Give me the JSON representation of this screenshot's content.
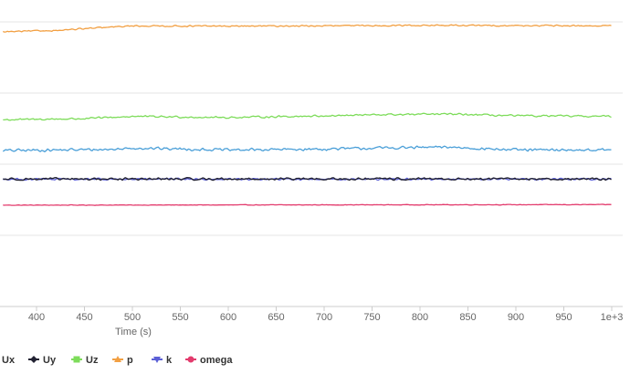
{
  "chart_data": {
    "type": "line",
    "title": "",
    "xlabel": "Time (s)",
    "ylabel": "",
    "xlim": [
      365,
      1000
    ],
    "x_ticks": [
      400,
      450,
      500,
      550,
      600,
      650,
      700,
      750,
      800,
      850,
      900,
      950,
      1000
    ],
    "x_tick_labels": [
      "400",
      "450",
      "500",
      "550",
      "600",
      "650",
      "700",
      "750",
      "800",
      "850",
      "900",
      "950",
      "1e+3"
    ],
    "y_range_note": "no y-axis tick labels visible",
    "grid": {
      "horizontal": true,
      "vertical": false
    },
    "legend_placement": "bottom",
    "series": [
      {
        "name": "Ux",
        "color": "#4a9fd8",
        "marker": "circle",
        "base": [
          [
            365,
            0.548
          ],
          [
            480,
            0.552
          ],
          [
            500,
            0.557
          ],
          [
            600,
            0.55
          ],
          [
            700,
            0.553
          ],
          [
            760,
            0.557
          ],
          [
            830,
            0.56
          ],
          [
            900,
            0.55
          ],
          [
            1000,
            0.55
          ]
        ],
        "noise": 0.006
      },
      {
        "name": "Uy",
        "color": "#222233",
        "marker": "diamond",
        "base": [
          [
            365,
            0.448
          ],
          [
            1000,
            0.448
          ]
        ],
        "noise": 0.005
      },
      {
        "name": "Uz",
        "color": "#7ddc5a",
        "marker": "square",
        "base": [
          [
            365,
            0.656
          ],
          [
            450,
            0.66
          ],
          [
            500,
            0.668
          ],
          [
            600,
            0.664
          ],
          [
            700,
            0.67
          ],
          [
            760,
            0.674
          ],
          [
            830,
            0.676
          ],
          [
            900,
            0.67
          ],
          [
            1000,
            0.668
          ]
        ],
        "noise": 0.004
      },
      {
        "name": "p",
        "color": "#f2a043",
        "marker": "triangle",
        "base": [
          [
            365,
            0.965
          ],
          [
            420,
            0.97
          ],
          [
            470,
            0.98
          ],
          [
            500,
            0.986
          ],
          [
            600,
            0.985
          ],
          [
            700,
            0.986
          ],
          [
            800,
            0.988
          ],
          [
            1000,
            0.986
          ]
        ],
        "noise": 0.003
      },
      {
        "name": "k",
        "color": "#5b5fd6",
        "marker": "triangle-down",
        "base": [
          [
            365,
            0.447
          ],
          [
            1000,
            0.448
          ]
        ],
        "noise": 0.004
      },
      {
        "name": "omega",
        "color": "#e33b6d",
        "marker": "circle",
        "base": [
          [
            365,
            0.356
          ],
          [
            1000,
            0.358
          ]
        ],
        "noise": 0.0012
      }
    ]
  }
}
